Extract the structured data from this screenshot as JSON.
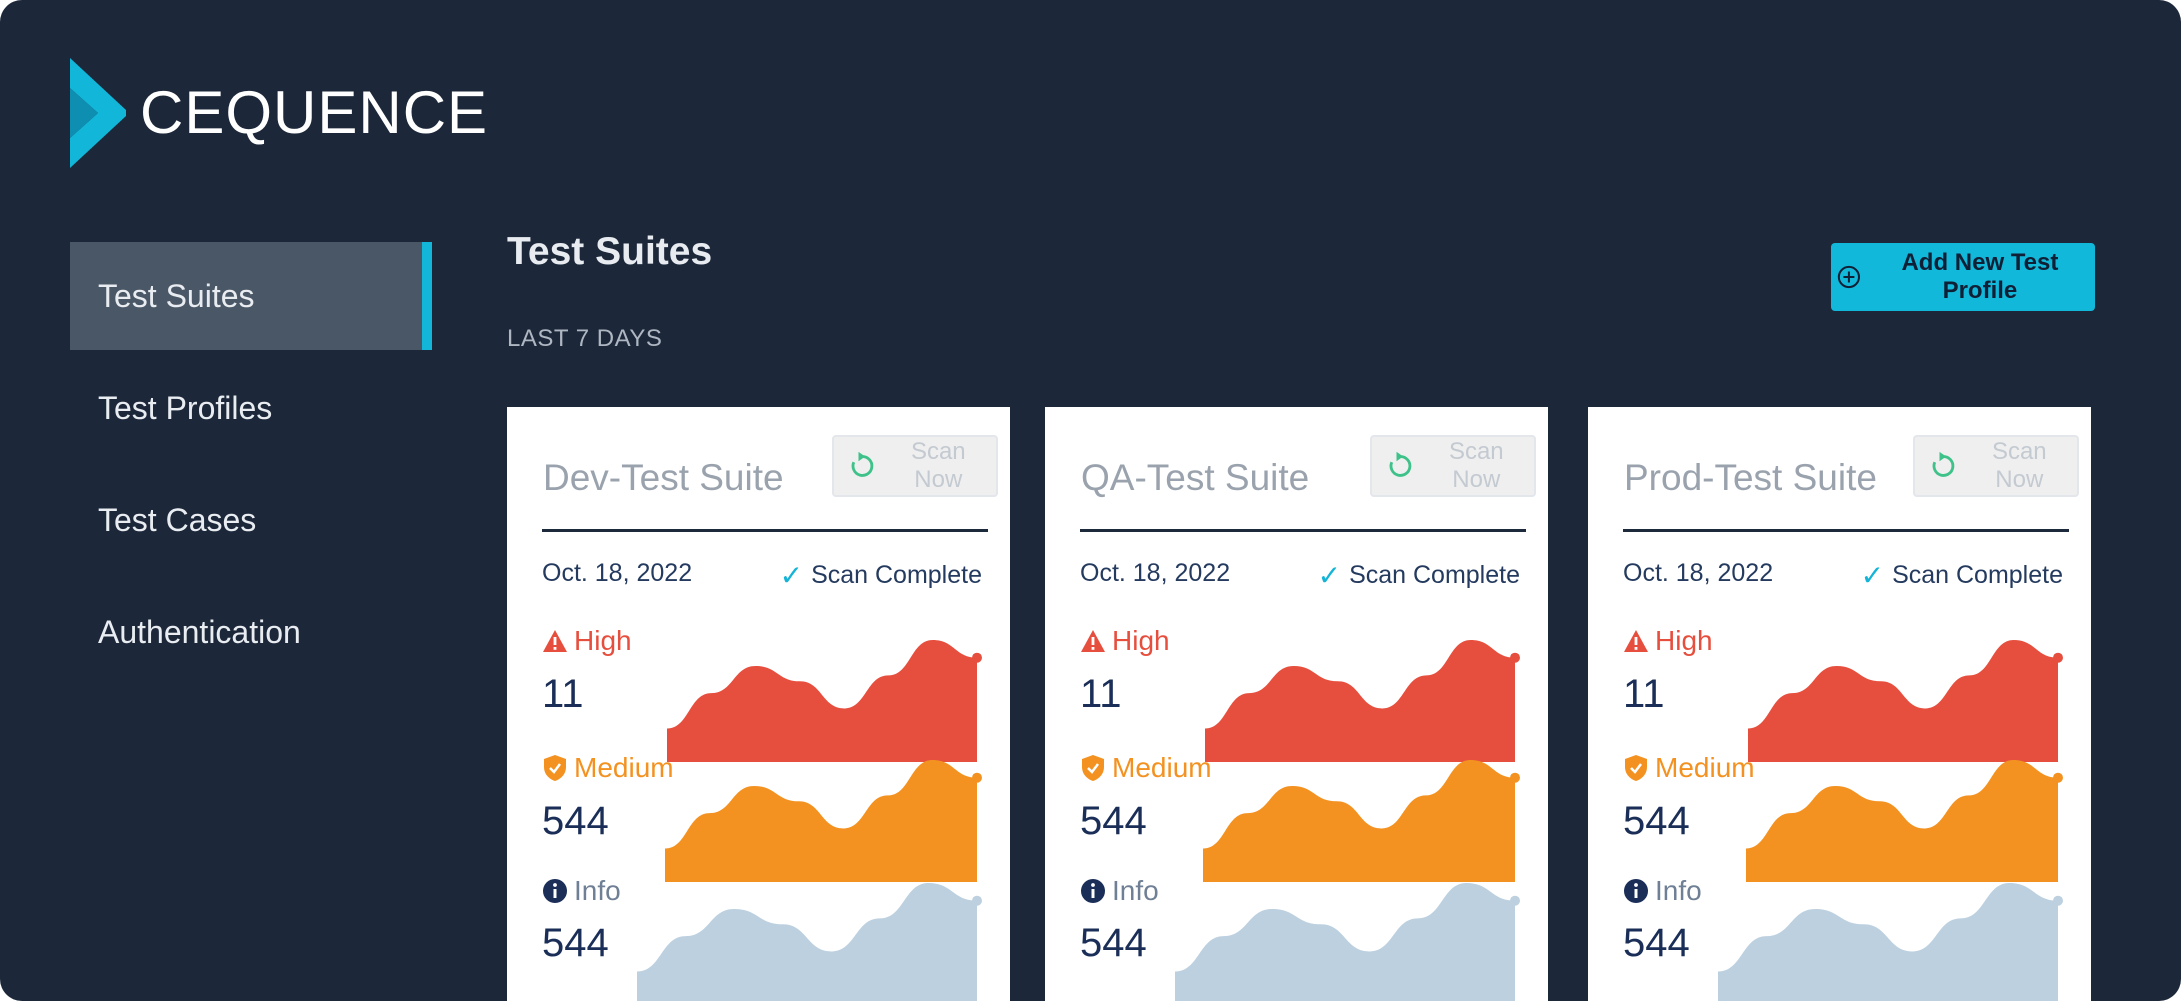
{
  "brand": {
    "name": "CEQUENCE",
    "color": "#12b6d8"
  },
  "sidebar": {
    "items": [
      {
        "label": "Test Suites",
        "active": true
      },
      {
        "label": "Test Profiles"
      },
      {
        "label": "Test Cases"
      },
      {
        "label": "Authentication"
      }
    ]
  },
  "header": {
    "title": "Test Suites",
    "period": "LAST 7 DAYS",
    "add_button_label": "Add New Test Profile"
  },
  "severity_labels": {
    "high": "High",
    "medium": "Medium",
    "info": "Info"
  },
  "colors": {
    "high": "#e64f3e",
    "medium": "#f39221",
    "info": "#bcd0e0",
    "accent": "#12b6d8",
    "background": "#1c283a"
  },
  "cards": [
    {
      "name": "Dev-Test Suite",
      "scan_label": "Scan Now",
      "date": "Oct. 18, 2022",
      "status": "Scan Complete",
      "high": "11",
      "medium": "544",
      "info": "544"
    },
    {
      "name": "QA-Test Suite",
      "scan_label": "Scan Now",
      "date": "Oct. 18, 2022",
      "status": "Scan Complete",
      "high": "11",
      "medium": "544",
      "info": "544"
    },
    {
      "name": "Prod-Test Suite",
      "scan_label": "Scan Now",
      "date": "Oct. 18, 2022",
      "status": "Scan Complete",
      "high": "11",
      "medium": "544",
      "info": "544"
    }
  ],
  "sparkline_trend": [
    0.25,
    0.55,
    0.78,
    0.65,
    0.42,
    0.7,
    1.0,
    0.85
  ]
}
